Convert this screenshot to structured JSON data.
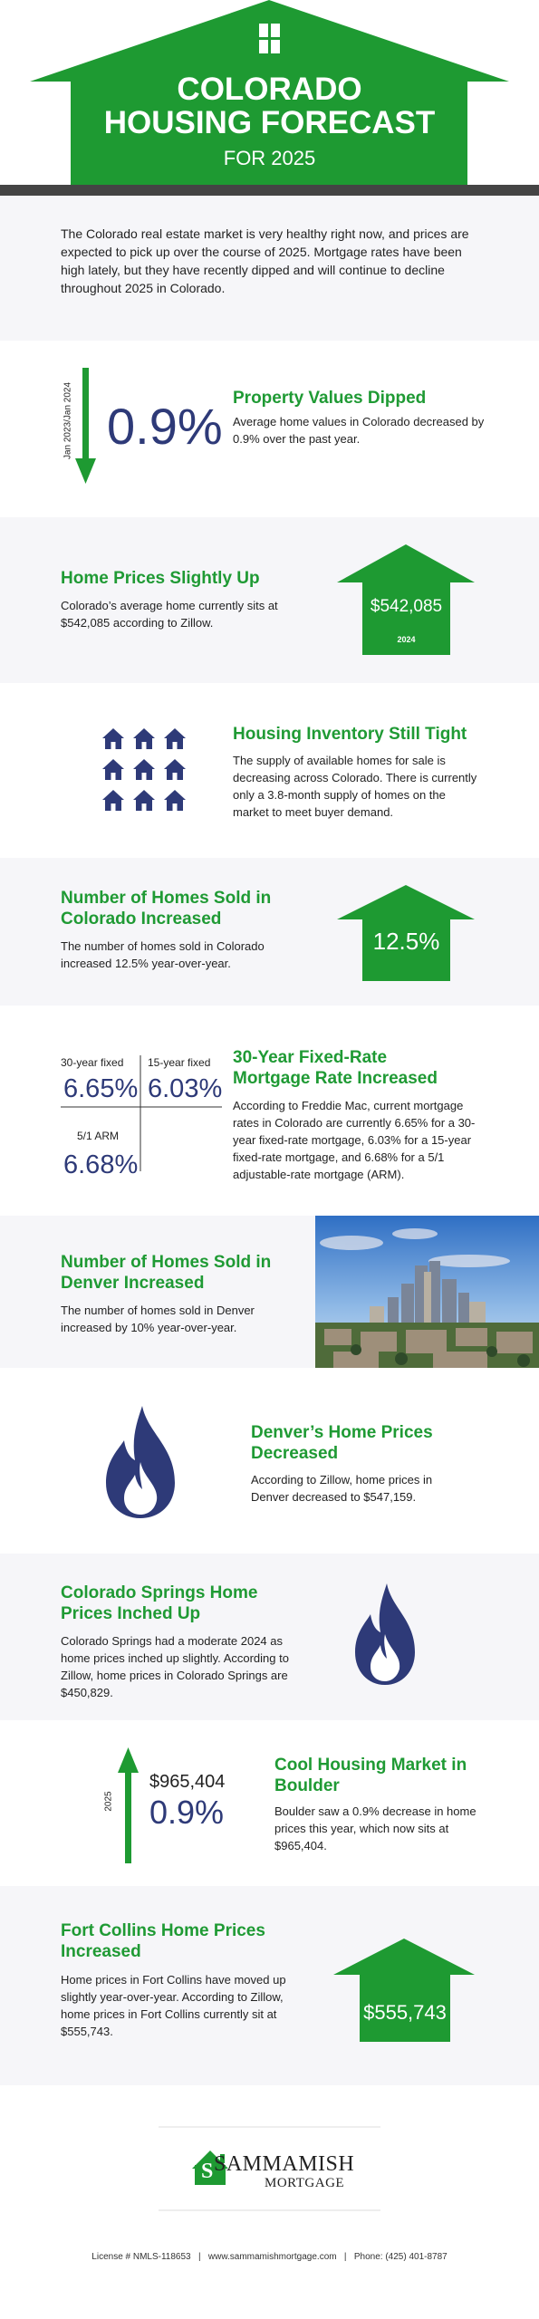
{
  "header": {
    "title_lines": [
      "COLORADO",
      "HOUSING FORECAST"
    ],
    "subtitle": "FOR 2025"
  },
  "intro": "The Colorado real estate market is very healthy right now, and prices are expected to pick up over the course of 2025. Mortgage rates have been high lately, but they have recently dipped and will continue to decline throughout 2025 in Colorado.",
  "property_values": {
    "period": "Jan 2023/Jan 2024",
    "stat": "0.9%",
    "title": "Property Values Dipped",
    "text": "Average home values in Colorado decreased by 0.9% over the past year."
  },
  "home_prices": {
    "title": "Home Prices Slightly Up",
    "text": "Colorado’s average home currently sits at $542,085 according to Zillow.",
    "stat": "$542,085",
    "year": "2024"
  },
  "inventory": {
    "title": "Housing Inventory Still Tight",
    "text": "The supply of available homes for sale is decreasing across Colorado. There is currently only a 3.8-month supply of homes on the market to meet buyer demand."
  },
  "homes_sold": {
    "title": "Number of Homes Sold in Colorado Increased",
    "text": "The number of homes sold in Colorado increased 12.5% year-over-year.",
    "stat": "12.5%"
  },
  "rates": {
    "items": [
      {
        "label": "30-year fixed",
        "value": "6.65%"
      },
      {
        "label": "15-year fixed",
        "value": "6.03%"
      },
      {
        "label": "5/1 ARM",
        "value": "6.68%"
      }
    ],
    "title": "30-Year Fixed-Rate Mortgage Rate Increased",
    "text": "According to Freddie Mac, current mortgage rates in Colorado are currently 6.65% for a 30-year fixed-rate mortgage, 6.03% for a 15-year fixed-rate mortgage, and 6.68% for a 5/1 adjustable-rate mortgage (ARM)."
  },
  "denver_sold": {
    "title": "Number of Homes Sold in Denver Increased",
    "text": "The number of homes sold in Denver increased by 10% year-over-year."
  },
  "denver_prices": {
    "title": "Denver’s Home Prices Decreased",
    "text": "According to Zillow, home prices in Denver decreased to $547,159."
  },
  "springs": {
    "title": "Colorado Springs Home Prices Inched Up",
    "text": "Colorado Springs had a moderate 2024 as home prices inched up slightly. According to Zillow, home prices in Colorado Springs are $450,829."
  },
  "boulder": {
    "year": "2025",
    "price": "$965,404",
    "stat": "0.9%",
    "title": "Cool Housing Market in Boulder",
    "text": "Boulder saw a 0.9% decrease in home prices this year, which now sits at $965,404."
  },
  "fort_collins": {
    "title": "Fort Collins Home Prices Increased",
    "text": "Home prices in Fort Collins have moved up slightly year-over-year. According to Zillow, home prices in Fort Collins currently sit at $555,743.",
    "stat": "$555,743"
  },
  "footer": {
    "logo_name": "SAMMAMISH",
    "logo_sub": "MORTGAGE",
    "contact": "License # NMLS-118653   |   www.sammamishmortgage.com   |   Phone: (425) 401-8787"
  }
}
